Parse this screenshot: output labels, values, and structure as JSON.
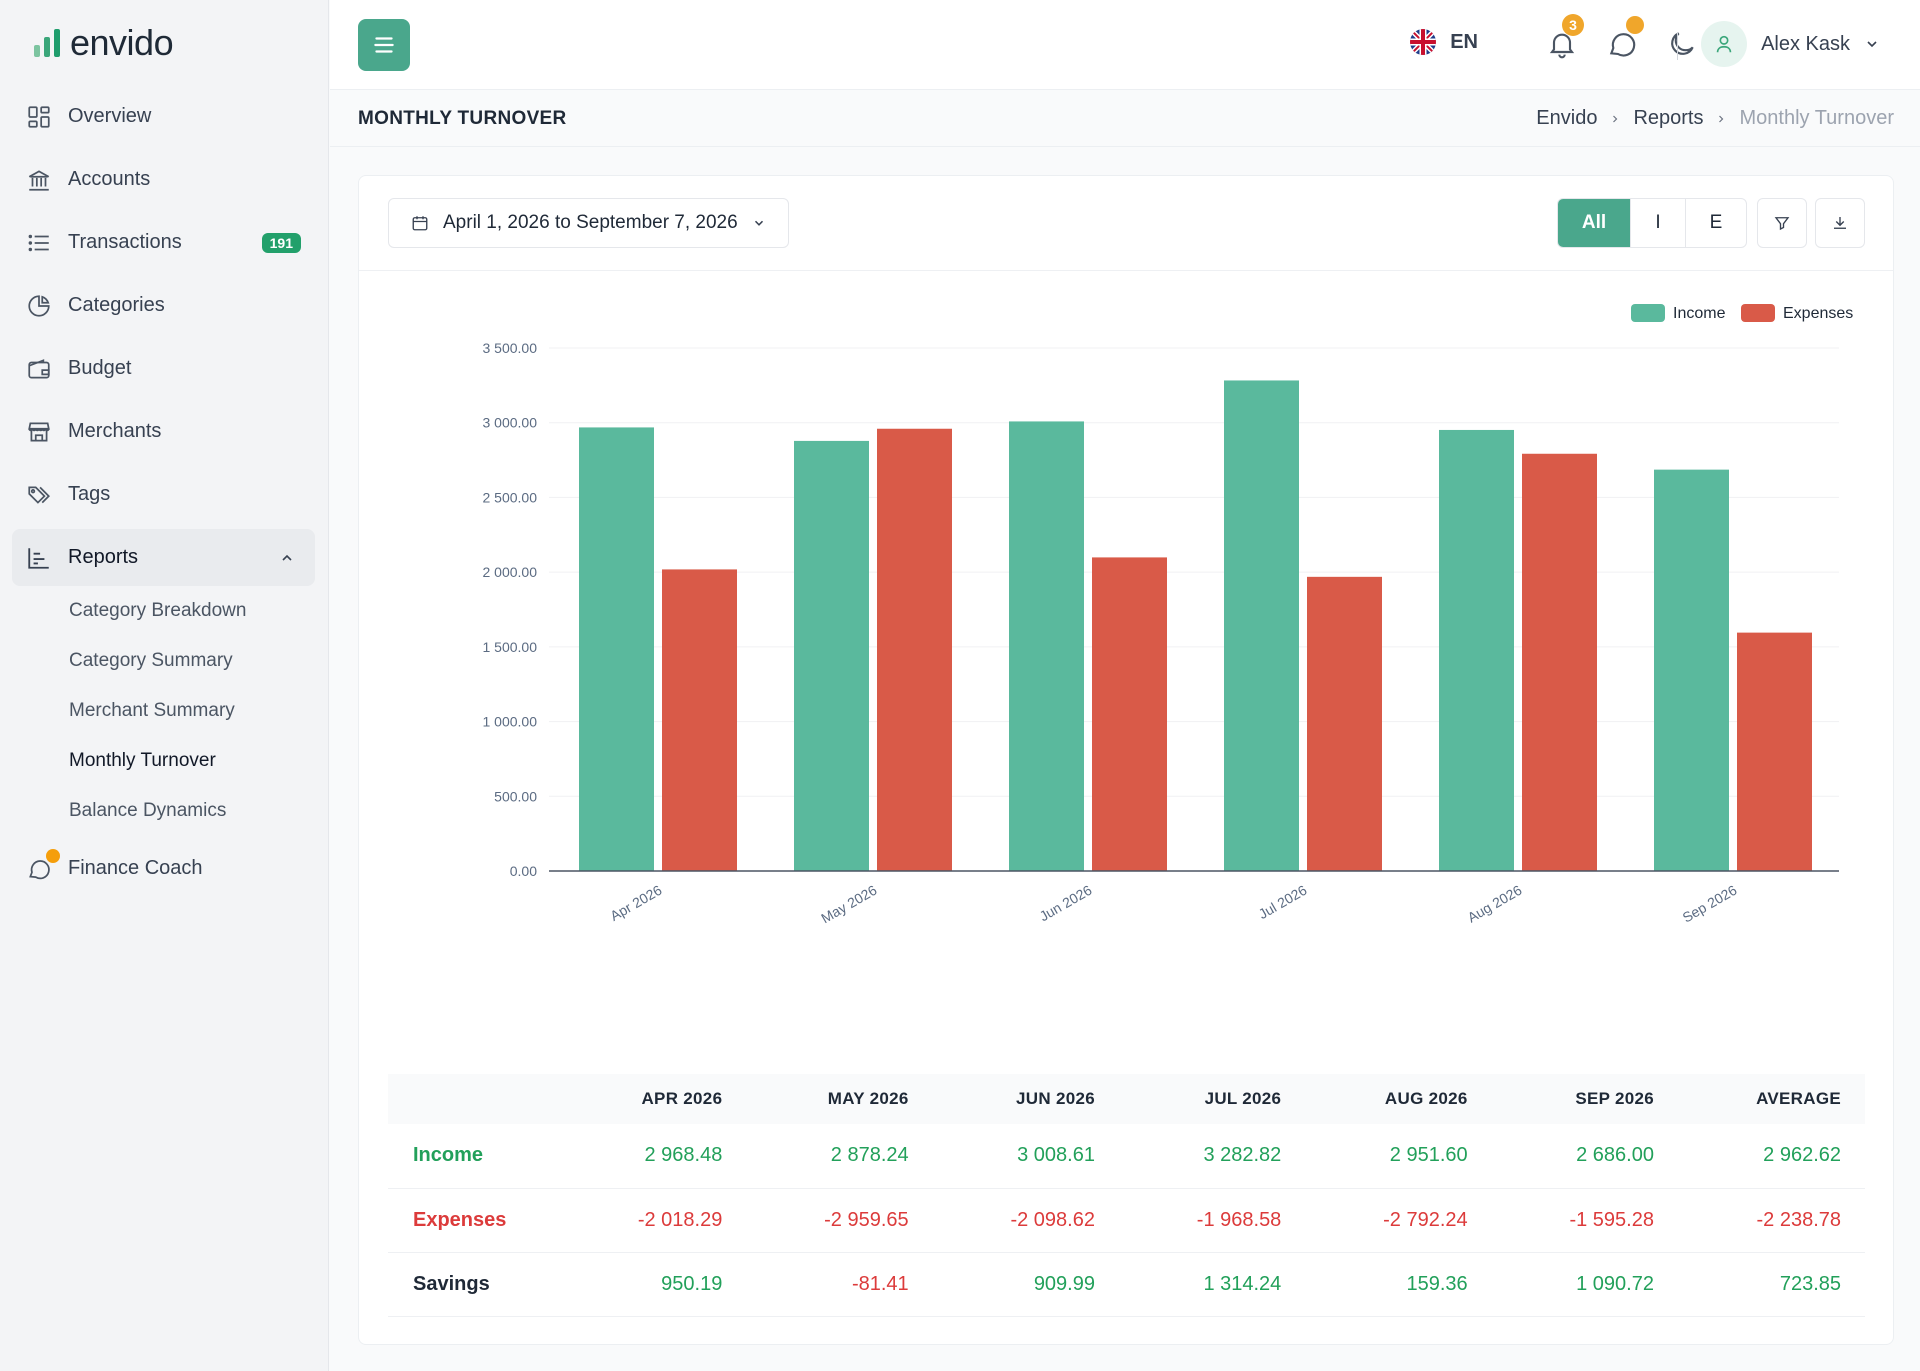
{
  "brand": {
    "name": "envido",
    "bar_colors": [
      "#5fb489",
      "#3aa67a",
      "#1f9d6d"
    ]
  },
  "sidebar": {
    "items": [
      {
        "label": "Overview",
        "icon": "grid-icon"
      },
      {
        "label": "Accounts",
        "icon": "bank-icon"
      },
      {
        "label": "Transactions",
        "icon": "list-icon",
        "badge": "191"
      },
      {
        "label": "Categories",
        "icon": "pie-icon"
      },
      {
        "label": "Budget",
        "icon": "wallet-icon"
      },
      {
        "label": "Merchants",
        "icon": "store-icon"
      },
      {
        "label": "Tags",
        "icon": "tags-icon"
      },
      {
        "label": "Reports",
        "icon": "chart-icon",
        "expanded": true
      }
    ],
    "reports_sub": [
      {
        "label": "Category Breakdown"
      },
      {
        "label": "Category Summary"
      },
      {
        "label": "Merchant Summary"
      },
      {
        "label": "Monthly Turnover",
        "active": true
      },
      {
        "label": "Balance Dynamics"
      }
    ],
    "coach": {
      "label": "Finance Coach",
      "icon": "chat-sparkle-icon"
    }
  },
  "header": {
    "language": "EN",
    "notifications_count": "3",
    "user_name": "Alex Kask"
  },
  "page": {
    "title": "MONTHLY TURNOVER",
    "breadcrumb": [
      "Envido",
      "Reports",
      "Monthly Turnover"
    ]
  },
  "toolbar": {
    "date_range": "April 1, 2026 to September 7, 2026",
    "segments": [
      "All",
      "I",
      "E"
    ],
    "active_segment": "All"
  },
  "chart_data": {
    "type": "bar",
    "categories": [
      "Apr 2026",
      "May 2026",
      "Jun 2026",
      "Jul 2026",
      "Aug 2026",
      "Sep 2026"
    ],
    "series": [
      {
        "name": "Income",
        "color": "#5ab99d",
        "values": [
          2968.48,
          2878.24,
          3008.61,
          3282.82,
          2951.6,
          2686.0
        ]
      },
      {
        "name": "Expenses",
        "color": "#d95a48",
        "values": [
          2018.29,
          2959.65,
          2098.62,
          1968.58,
          2792.24,
          1595.28
        ]
      }
    ],
    "ylim": [
      0,
      3500
    ],
    "yticks": [
      "0.00",
      "500.00",
      "1 000.00",
      "1 500.00",
      "2 000.00",
      "2 500.00",
      "3 000.00",
      "3 500.00"
    ],
    "legend": "top-right",
    "grid": true
  },
  "table": {
    "columns": [
      "APR 2026",
      "MAY 2026",
      "JUN 2026",
      "JUL 2026",
      "AUG 2026",
      "SEP 2026",
      "AVERAGE"
    ],
    "rows": [
      {
        "label": "Income",
        "kind": "income",
        "cells": [
          "2 968.48",
          "2 878.24",
          "3 008.61",
          "3 282.82",
          "2 951.60",
          "2 686.00",
          "2 962.62"
        ]
      },
      {
        "label": "Expenses",
        "kind": "expenses",
        "cells": [
          "-2 018.29",
          "-2 959.65",
          "-2 098.62",
          "-1 968.58",
          "-2 792.24",
          "-1 595.28",
          "-2 238.78"
        ]
      },
      {
        "label": "Savings",
        "kind": "savings",
        "cells": [
          "950.19",
          "-81.41",
          "909.99",
          "1 314.24",
          "159.36",
          "1 090.72",
          "723.85"
        ]
      }
    ]
  }
}
